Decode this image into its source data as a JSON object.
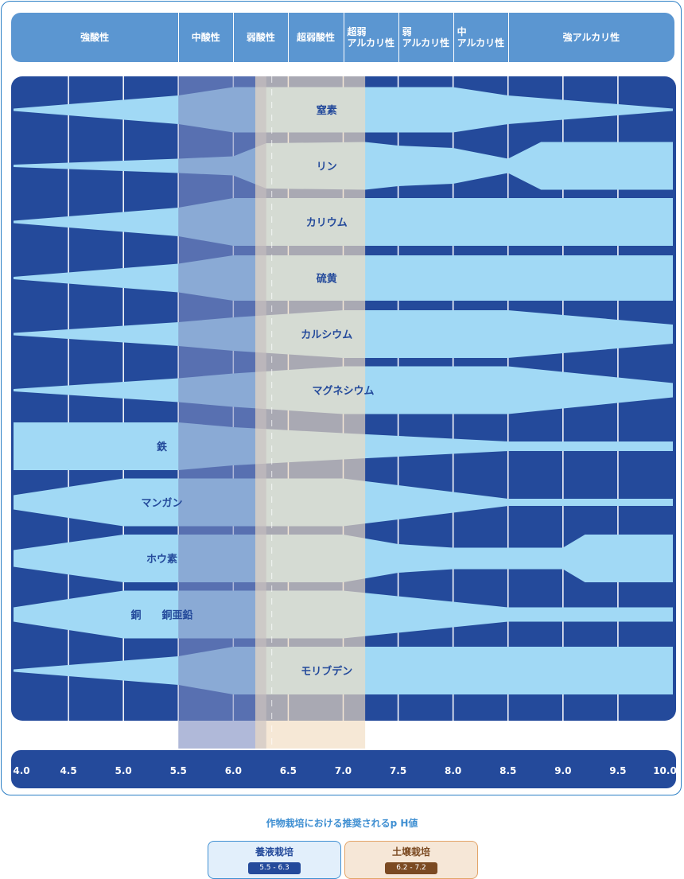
{
  "header": {
    "categories": [
      "強酸性",
      "中酸性",
      "弱酸性",
      "超弱酸性",
      "超弱\nアルカリ性",
      "弱\nアルカリ性",
      "中\nアルカリ性",
      "強アルカリ性"
    ]
  },
  "colors": {
    "background": "#244a9b",
    "band": "#a1d9f5",
    "grid": "#ffffff",
    "header": "#5b96d1",
    "hydroponic_overlay": "#7b8bc0",
    "soil_overlay": "#f1dcc0",
    "label": "#244a9b"
  },
  "chart_data": {
    "type": "area",
    "x_axis": {
      "label": "pH",
      "ticks": [
        "4.0",
        "4.5",
        "5.0",
        "5.5",
        "6.0",
        "6.5",
        "7.0",
        "7.5",
        "8.0",
        "8.5",
        "9.0",
        "9.5",
        "10.0"
      ],
      "range": [
        4.0,
        10.0
      ]
    },
    "nutrients": [
      {
        "name": "窒素",
        "label_ph": 6.85,
        "points": [
          [
            4.0,
            0.05
          ],
          [
            5.5,
            0.6
          ],
          [
            6.0,
            0.95
          ],
          [
            8.0,
            0.95
          ],
          [
            8.5,
            0.6
          ],
          [
            10.0,
            0.05
          ]
        ]
      },
      {
        "name": "リン",
        "label_ph": 6.85,
        "points": [
          [
            4.0,
            0.05
          ],
          [
            5.5,
            0.3
          ],
          [
            6.0,
            0.4
          ],
          [
            6.3,
            0.95
          ],
          [
            7.2,
            1.0
          ],
          [
            7.5,
            0.85
          ],
          [
            8.0,
            0.75
          ],
          [
            8.5,
            0.3
          ],
          [
            8.8,
            1.0
          ],
          [
            10.0,
            1.0
          ]
        ]
      },
      {
        "name": "カリウム",
        "label_ph": 6.85,
        "points": [
          [
            4.0,
            0.05
          ],
          [
            5.5,
            0.6
          ],
          [
            6.0,
            1.0
          ],
          [
            10.0,
            1.0
          ]
        ]
      },
      {
        "name": "硫黄",
        "label_ph": 6.85,
        "points": [
          [
            4.0,
            0.05
          ],
          [
            5.5,
            0.6
          ],
          [
            6.0,
            0.95
          ],
          [
            10.0,
            0.95
          ]
        ]
      },
      {
        "name": "カルシウム",
        "label_ph": 6.85,
        "points": [
          [
            4.0,
            0.05
          ],
          [
            5.5,
            0.5
          ],
          [
            6.0,
            0.7
          ],
          [
            7.0,
            1.0
          ],
          [
            8.5,
            1.0
          ],
          [
            10.0,
            0.4
          ]
        ]
      },
      {
        "name": "マグネシウム",
        "label_ph": 7.0,
        "points": [
          [
            4.0,
            0.05
          ],
          [
            5.5,
            0.5
          ],
          [
            6.0,
            0.7
          ],
          [
            7.0,
            1.0
          ],
          [
            8.5,
            1.0
          ],
          [
            10.0,
            0.3
          ]
        ]
      },
      {
        "name": "鉄",
        "label_ph": 5.35,
        "points": [
          [
            4.0,
            1.0
          ],
          [
            5.5,
            1.0
          ],
          [
            6.0,
            0.8
          ],
          [
            7.0,
            0.55
          ],
          [
            8.5,
            0.2
          ],
          [
            10.0,
            0.2
          ]
        ]
      },
      {
        "name": "マンガン",
        "label_ph": 5.35,
        "points": [
          [
            4.0,
            0.3
          ],
          [
            5.0,
            1.0
          ],
          [
            7.0,
            1.0
          ],
          [
            8.5,
            0.15
          ],
          [
            10.0,
            0.15
          ]
        ]
      },
      {
        "name": "ホウ素",
        "label_ph": 5.35,
        "points": [
          [
            4.0,
            0.35
          ],
          [
            5.0,
            1.0
          ],
          [
            7.0,
            1.0
          ],
          [
            7.5,
            0.6
          ],
          [
            8.0,
            0.45
          ],
          [
            9.0,
            0.45
          ],
          [
            9.2,
            1.0
          ],
          [
            10.0,
            1.0
          ]
        ]
      },
      {
        "name": "銅　　銅亜鉛",
        "label_ph": 5.35,
        "points": [
          [
            4.0,
            0.3
          ],
          [
            5.0,
            1.0
          ],
          [
            7.0,
            1.0
          ],
          [
            8.5,
            0.3
          ],
          [
            10.0,
            0.3
          ]
        ]
      },
      {
        "name": "モリブデン",
        "label_ph": 6.85,
        "points": [
          [
            4.0,
            0.05
          ],
          [
            5.5,
            0.6
          ],
          [
            6.0,
            1.0
          ],
          [
            10.0,
            1.0
          ]
        ]
      }
    ],
    "recommended_ranges": [
      {
        "name": "養液栽培",
        "range": [
          5.5,
          6.3
        ]
      },
      {
        "name": "土壌栽培",
        "range": [
          6.2,
          7.2
        ]
      }
    ]
  },
  "footer": {
    "title": "作物栽培における推奨されるp H値",
    "legend": [
      {
        "label": "養液栽培",
        "range": "5.5 - 6.3"
      },
      {
        "label": "土壌栽培",
        "range": "6.2 - 7.2"
      }
    ]
  }
}
